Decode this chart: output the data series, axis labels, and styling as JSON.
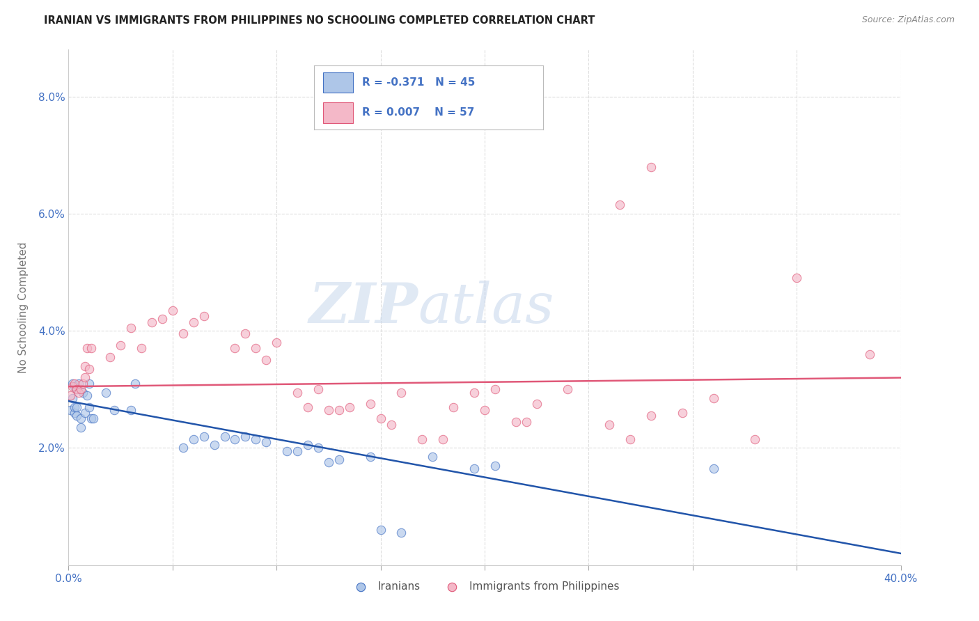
{
  "title": "IRANIAN VS IMMIGRANTS FROM PHILIPPINES NO SCHOOLING COMPLETED CORRELATION CHART",
  "source": "Source: ZipAtlas.com",
  "ylabel": "No Schooling Completed",
  "watermark": "ZIPatlas",
  "xlim": [
    0.0,
    0.4
  ],
  "ylim": [
    0.0,
    0.088
  ],
  "xtick_positions": [
    0.0,
    0.05,
    0.1,
    0.15,
    0.2,
    0.25,
    0.3,
    0.35,
    0.4
  ],
  "xtick_labels": [
    "0.0%",
    "",
    "",
    "",
    "",
    "",
    "",
    "",
    "40.0%"
  ],
  "ytick_positions": [
    0.0,
    0.02,
    0.04,
    0.06,
    0.08
  ],
  "ytick_labels": [
    "",
    "2.0%",
    "4.0%",
    "6.0%",
    "8.0%"
  ],
  "legend_iranian_R": "-0.371",
  "legend_iranian_N": "45",
  "legend_phil_R": "0.007",
  "legend_phil_N": "57",
  "iranian_face_color": "#aec6e8",
  "iranian_edge_color": "#4472c4",
  "phil_face_color": "#f4b8c8",
  "phil_edge_color": "#e05878",
  "iranian_line_color": "#2255aa",
  "phil_line_color": "#e05878",
  "tick_label_color": "#4472c4",
  "axis_label_color": "#777777",
  "background_color": "#ffffff",
  "grid_color": "#dddddd",
  "marker_size": 80,
  "marker_alpha": 0.65,
  "iranians_x": [
    0.001,
    0.002,
    0.002,
    0.003,
    0.003,
    0.003,
    0.004,
    0.004,
    0.004,
    0.005,
    0.006,
    0.006,
    0.007,
    0.008,
    0.009,
    0.01,
    0.01,
    0.011,
    0.012,
    0.018,
    0.022,
    0.03,
    0.032,
    0.055,
    0.06,
    0.065,
    0.07,
    0.075,
    0.08,
    0.085,
    0.09,
    0.095,
    0.105,
    0.11,
    0.115,
    0.12,
    0.125,
    0.13,
    0.145,
    0.15,
    0.16,
    0.175,
    0.195,
    0.205,
    0.31
  ],
  "iranians_y": [
    0.0265,
    0.0285,
    0.031,
    0.026,
    0.027,
    0.0305,
    0.0255,
    0.027,
    0.03,
    0.031,
    0.0235,
    0.025,
    0.0295,
    0.026,
    0.029,
    0.027,
    0.031,
    0.025,
    0.025,
    0.0295,
    0.0265,
    0.0265,
    0.031,
    0.02,
    0.0215,
    0.022,
    0.0205,
    0.022,
    0.0215,
    0.022,
    0.0215,
    0.021,
    0.0195,
    0.0195,
    0.0205,
    0.02,
    0.0175,
    0.018,
    0.0185,
    0.006,
    0.0055,
    0.0185,
    0.0165,
    0.017,
    0.0165
  ],
  "phil_x": [
    0.001,
    0.002,
    0.003,
    0.004,
    0.005,
    0.006,
    0.007,
    0.008,
    0.008,
    0.009,
    0.01,
    0.011,
    0.02,
    0.025,
    0.03,
    0.035,
    0.04,
    0.045,
    0.05,
    0.055,
    0.06,
    0.065,
    0.08,
    0.085,
    0.09,
    0.095,
    0.1,
    0.11,
    0.115,
    0.12,
    0.125,
    0.13,
    0.135,
    0.145,
    0.15,
    0.155,
    0.16,
    0.17,
    0.18,
    0.185,
    0.195,
    0.2,
    0.205,
    0.215,
    0.22,
    0.225,
    0.24,
    0.26,
    0.27,
    0.28,
    0.295,
    0.31,
    0.33,
    0.265,
    0.28,
    0.35,
    0.385
  ],
  "phil_y": [
    0.029,
    0.0305,
    0.031,
    0.03,
    0.0295,
    0.03,
    0.031,
    0.032,
    0.034,
    0.037,
    0.0335,
    0.037,
    0.0355,
    0.0375,
    0.0405,
    0.037,
    0.0415,
    0.042,
    0.0435,
    0.0395,
    0.0415,
    0.0425,
    0.037,
    0.0395,
    0.037,
    0.035,
    0.038,
    0.0295,
    0.027,
    0.03,
    0.0265,
    0.0265,
    0.027,
    0.0275,
    0.025,
    0.024,
    0.0295,
    0.0215,
    0.0215,
    0.027,
    0.0295,
    0.0265,
    0.03,
    0.0245,
    0.0245,
    0.0275,
    0.03,
    0.024,
    0.0215,
    0.0255,
    0.026,
    0.0285,
    0.0215,
    0.0615,
    0.068,
    0.049,
    0.036
  ],
  "iranian_trendline_y0": 0.028,
  "iranian_trendline_y1": 0.002,
  "phil_trendline_y0": 0.0305,
  "phil_trendline_y1": 0.032
}
